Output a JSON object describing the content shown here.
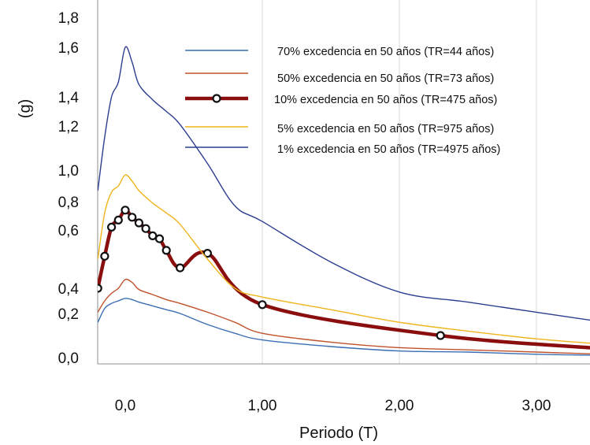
{
  "chart_data": {
    "type": "line",
    "xlabel": "Periodo (T)",
    "ylabel": "(g)",
    "title": "",
    "y_tick_labels": [
      "0,0",
      "0,2",
      "0,4",
      "0,6",
      "0,8",
      "1,0",
      "1,2",
      "1,4",
      "1,6",
      "1,8"
    ],
    "x_tick_labels": [
      "0,0",
      "1,00",
      "2,00",
      "3,00"
    ],
    "x_ticks": [
      0,
      1.0,
      2.0,
      3.0
    ],
    "xlim": [
      -0.2,
      3.5
    ],
    "grid": true,
    "legend_position": "top-right",
    "series": [
      {
        "name": "70% excedencia en 50 años (TR=44 años)",
        "color": "#3b6db3",
        "marker": false,
        "x": [
          -0.2,
          -0.15,
          -0.1,
          -0.05,
          0.0,
          0.05,
          0.1,
          0.2,
          0.3,
          0.4,
          0.6,
          0.8,
          1.0,
          1.5,
          2.0,
          2.5,
          3.0,
          3.5
        ],
        "y": [
          0.16,
          0.24,
          0.28,
          0.3,
          0.32,
          0.31,
          0.29,
          0.26,
          0.23,
          0.2,
          0.15,
          0.11,
          0.08,
          0.05,
          0.03,
          0.025,
          0.015,
          0.01
        ]
      },
      {
        "name": "50% excedencia en 50 años (TR=73 años)",
        "color": "#c0522b",
        "marker": false,
        "x": [
          -0.2,
          -0.15,
          -0.1,
          -0.05,
          0.0,
          0.05,
          0.1,
          0.2,
          0.3,
          0.4,
          0.6,
          0.8,
          1.0,
          1.5,
          2.0,
          2.5,
          3.0,
          3.5
        ],
        "y": [
          0.21,
          0.3,
          0.36,
          0.4,
          0.43,
          0.42,
          0.39,
          0.35,
          0.31,
          0.28,
          0.21,
          0.16,
          0.11,
          0.07,
          0.045,
          0.035,
          0.025,
          0.015
        ]
      },
      {
        "name": "10% excedencia en 50 años (TR=475 años)",
        "color": "#8b0e0e",
        "marker": true,
        "x": [
          -0.2,
          -0.15,
          -0.1,
          -0.05,
          0.0,
          0.05,
          0.1,
          0.15,
          0.2,
          0.25,
          0.3,
          0.4,
          0.6,
          1.0,
          2.3,
          3.5
        ],
        "y": [
          0.4,
          0.51,
          0.62,
          0.67,
          0.74,
          0.69,
          0.65,
          0.61,
          0.58,
          0.57,
          0.53,
          0.47,
          0.52,
          0.27,
          0.1,
          0.04
        ]
      },
      {
        "name": "5% excedencia en 50 años (TR=975 años)",
        "color": "#f0b51c",
        "marker": false,
        "x": [
          -0.2,
          -0.15,
          -0.1,
          -0.05,
          0.0,
          0.05,
          0.1,
          0.2,
          0.3,
          0.4,
          0.6,
          0.8,
          1.0,
          1.5,
          2.0,
          2.5,
          3.0,
          3.5
        ],
        "y": [
          0.5,
          0.72,
          0.86,
          0.9,
          0.97,
          0.93,
          0.87,
          0.79,
          0.72,
          0.64,
          0.5,
          0.4,
          0.33,
          0.23,
          0.16,
          0.12,
          0.085,
          0.06
        ]
      },
      {
        "name": "1% excedencia en 50 años (TR=4975 años)",
        "color": "#2c3e91",
        "marker": false,
        "x": [
          -0.2,
          -0.15,
          -0.1,
          -0.05,
          0.0,
          0.05,
          0.1,
          0.2,
          0.3,
          0.4,
          0.6,
          0.8,
          1.0,
          1.5,
          2.0,
          2.5,
          3.0,
          3.5
        ],
        "y": [
          0.87,
          1.15,
          1.4,
          1.46,
          1.6,
          1.54,
          1.45,
          1.38,
          1.3,
          1.21,
          1.03,
          0.77,
          0.66,
          0.49,
          0.37,
          0.29,
          0.21,
          0.16
        ]
      }
    ]
  }
}
